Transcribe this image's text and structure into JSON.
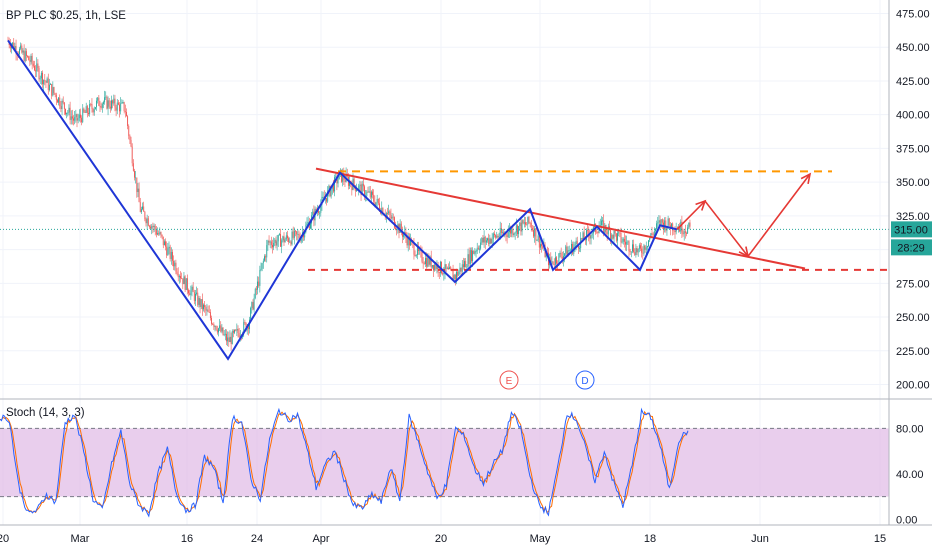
{
  "header": {
    "symbol_line": "BP PLC $0.25, 1h, LSE"
  },
  "indicator": {
    "label": "Stoch (14, 3, 3)",
    "upper_band": 80,
    "lower_band": 20,
    "band_color": "#e1bee7"
  },
  "price_panel": {
    "last_price_label": "315.00",
    "countdown_label": "28:29",
    "price_tag_color": "#26a69a"
  },
  "events": {
    "earnings_badge": "E",
    "dividend_badge": "D"
  },
  "colors": {
    "up": "#26a69a",
    "down": "#ef5350",
    "zigzag": "#1f36d6",
    "trendline": "#e53935",
    "resistance": "#ff9800",
    "stoch_k": "#2962ff",
    "stoch_d": "#ff6d00"
  },
  "chart_data": [
    {
      "type": "candlestick",
      "title": "BP PLC $0.25, 1h, LSE",
      "ylim": [
        190,
        485
      ],
      "y_ticks": [
        200,
        225,
        250,
        275,
        300,
        325,
        350,
        375,
        400,
        425,
        450,
        475
      ],
      "y_tick_labels": [
        "200.00",
        "225.00",
        "250.00",
        "275.00",
        "300.00",
        "325.00",
        "350.00",
        "375.00",
        "400.00",
        "425.00",
        "450.00",
        "475.00"
      ],
      "x_tick_labels": [
        "20",
        "Mar",
        "16",
        "24",
        "Apr",
        "20",
        "May",
        "18",
        "Jun",
        "15"
      ],
      "last_price": 315.0,
      "price_path": [
        [
          "Feb 20",
          455
        ],
        [
          "Feb 24",
          440
        ],
        [
          "Feb 28",
          395
        ],
        [
          "Mar 2",
          410
        ],
        [
          "Mar 6",
          405
        ],
        [
          "Mar 10",
          330
        ],
        [
          "Mar 12",
          310
        ],
        [
          "Mar 16",
          275
        ],
        [
          "Mar 19",
          232
        ],
        [
          "Mar 23",
          245
        ],
        [
          "Mar 26",
          305
        ],
        [
          "Mar 30",
          310
        ],
        [
          "Apr 2",
          355
        ],
        [
          "Apr 8",
          340
        ],
        [
          "Apr 14",
          320
        ],
        [
          "Apr 18",
          295
        ],
        [
          "Apr 21",
          280
        ],
        [
          "Apr 24",
          305
        ],
        [
          "Apr 28",
          320
        ],
        [
          "May 1",
          290
        ],
        [
          "May 5",
          300
        ],
        [
          "May 11",
          318
        ],
        [
          "May 15",
          298
        ],
        [
          "May 18",
          320
        ],
        [
          "May 21",
          315
        ]
      ],
      "zigzag_pattern": [
        455,
        219,
        357,
        276,
        330,
        285,
        317,
        285,
        318,
        315
      ],
      "projection_path": [
        315,
        336,
        295,
        356
      ],
      "trendline": [
        360,
        286
      ],
      "resistance_level": 358,
      "support_level": 285
    },
    {
      "type": "line",
      "title": "Stoch (14, 3, 3)",
      "ylim": [
        -5,
        105
      ],
      "y_ticks": [
        0,
        40,
        80
      ],
      "y_tick_labels": [
        "0.00",
        "40.00",
        "80.00"
      ],
      "bands": [
        20,
        80
      ],
      "series": [
        {
          "values": [
            90,
            88,
            30,
            5,
            8,
            22,
            15,
            85,
            92,
            60,
            18,
            8,
            48,
            78,
            30,
            12,
            5,
            40,
            62,
            22,
            8,
            12,
            55,
            45,
            15,
            90,
            85,
            35,
            18,
            70,
            96,
            88,
            92,
            62,
            28,
            48,
            60,
            36,
            12,
            10,
            22,
            15,
            46,
            16,
            90,
            68,
            42,
            18,
            30,
            80,
            72,
            45,
            32,
            48,
            60,
            94,
            80,
            38,
            12,
            6,
            46,
            94,
            88,
            62,
            34,
            60,
            32,
            12,
            48,
            94,
            90,
            65,
            26,
            70,
            78
          ]
        }
      ]
    }
  ]
}
